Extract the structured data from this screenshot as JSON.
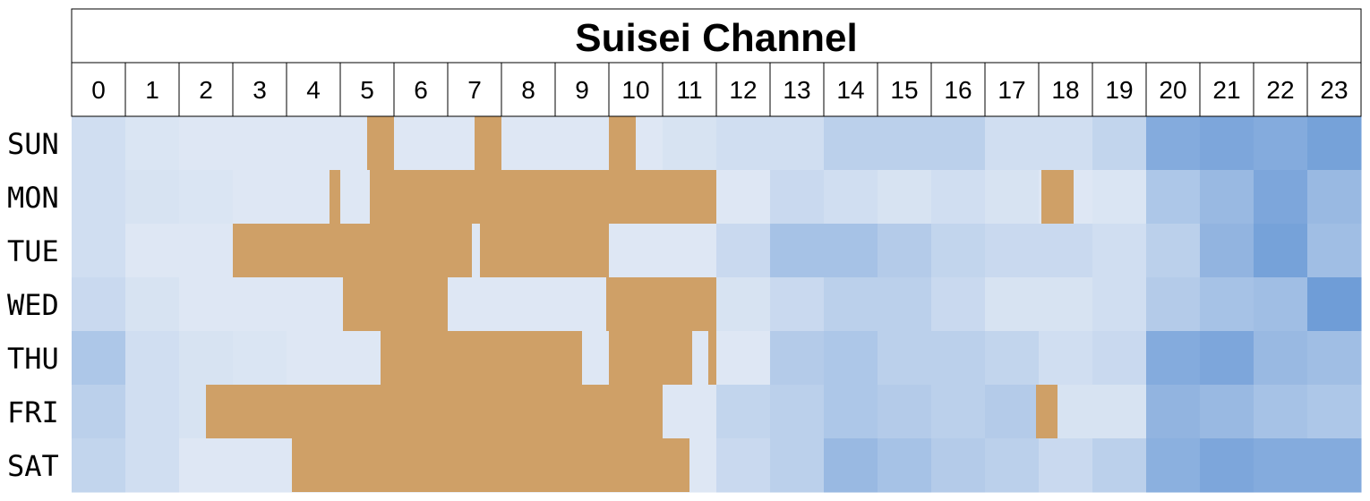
{
  "chart_data": {
    "type": "heatmap",
    "title": "Suisei Channel",
    "hours": [
      "0",
      "1",
      "2",
      "3",
      "4",
      "5",
      "6",
      "7",
      "8",
      "9",
      "10",
      "11",
      "12",
      "13",
      "14",
      "15",
      "16",
      "17",
      "18",
      "19",
      "20",
      "21",
      "22",
      "23"
    ],
    "days": [
      "SUN",
      "MON",
      "TUE",
      "WED",
      "THU",
      "FRI",
      "SAT"
    ],
    "value_scale": "light-to-dark blue (0 = low activity, 1 = high activity)",
    "stream_color": "#cfa067",
    "low_color": "#e5ecf6",
    "high_color": "#5a8fd2",
    "intensity": [
      [
        0.15,
        0.08,
        0.05,
        0.05,
        0.05,
        0.05,
        0.05,
        0.05,
        0.05,
        0.05,
        0.05,
        0.1,
        0.15,
        0.15,
        0.3,
        0.3,
        0.3,
        0.15,
        0.15,
        0.25,
        0.7,
        0.75,
        0.7,
        0.8
      ],
      [
        0.15,
        0.1,
        0.08,
        0.05,
        0.05,
        0.05,
        0.05,
        0.05,
        0.05,
        0.05,
        0.05,
        0.05,
        0.05,
        0.2,
        0.15,
        0.1,
        0.15,
        0.1,
        0.05,
        0.08,
        0.4,
        0.55,
        0.75,
        0.55
      ],
      [
        0.15,
        0.05,
        0.05,
        0.05,
        0.05,
        0.05,
        0.05,
        0.05,
        0.05,
        0.05,
        0.05,
        0.05,
        0.2,
        0.45,
        0.45,
        0.35,
        0.25,
        0.2,
        0.2,
        0.15,
        0.3,
        0.6,
        0.8,
        0.5
      ],
      [
        0.2,
        0.1,
        0.05,
        0.05,
        0.05,
        0.05,
        0.05,
        0.05,
        0.05,
        0.05,
        0.05,
        0.05,
        0.1,
        0.2,
        0.3,
        0.3,
        0.2,
        0.1,
        0.1,
        0.15,
        0.35,
        0.45,
        0.5,
        0.85
      ],
      [
        0.4,
        0.15,
        0.1,
        0.08,
        0.05,
        0.05,
        0.05,
        0.05,
        0.05,
        0.05,
        0.05,
        0.05,
        0.05,
        0.35,
        0.4,
        0.3,
        0.3,
        0.25,
        0.15,
        0.2,
        0.7,
        0.75,
        0.55,
        0.5
      ],
      [
        0.3,
        0.15,
        0.1,
        0.05,
        0.05,
        0.05,
        0.05,
        0.05,
        0.05,
        0.05,
        0.05,
        0.05,
        0.25,
        0.3,
        0.4,
        0.35,
        0.3,
        0.35,
        0.1,
        0.1,
        0.6,
        0.55,
        0.45,
        0.4
      ],
      [
        0.25,
        0.15,
        0.05,
        0.05,
        0.05,
        0.05,
        0.05,
        0.05,
        0.05,
        0.05,
        0.05,
        0.05,
        0.2,
        0.3,
        0.55,
        0.45,
        0.35,
        0.3,
        0.2,
        0.3,
        0.65,
        0.75,
        0.7,
        0.7
      ]
    ],
    "streams": [
      [
        [
          5.5,
          6.0
        ],
        [
          7.5,
          8.0
        ],
        [
          10.0,
          10.5
        ]
      ],
      [
        [
          4.8,
          5.0
        ],
        [
          5.55,
          12.0
        ],
        [
          18.05,
          18.65
        ]
      ],
      [
        [
          3.0,
          7.45
        ],
        [
          7.6,
          10.0
        ]
      ],
      [
        [
          5.05,
          7.0
        ],
        [
          9.95,
          12.0
        ]
      ],
      [
        [
          5.75,
          9.5
        ],
        [
          10.0,
          11.55
        ],
        [
          11.85,
          12.0
        ]
      ],
      [
        [
          2.5,
          11.0
        ],
        [
          17.95,
          18.35
        ]
      ],
      [
        [
          4.1,
          11.5
        ]
      ]
    ]
  }
}
